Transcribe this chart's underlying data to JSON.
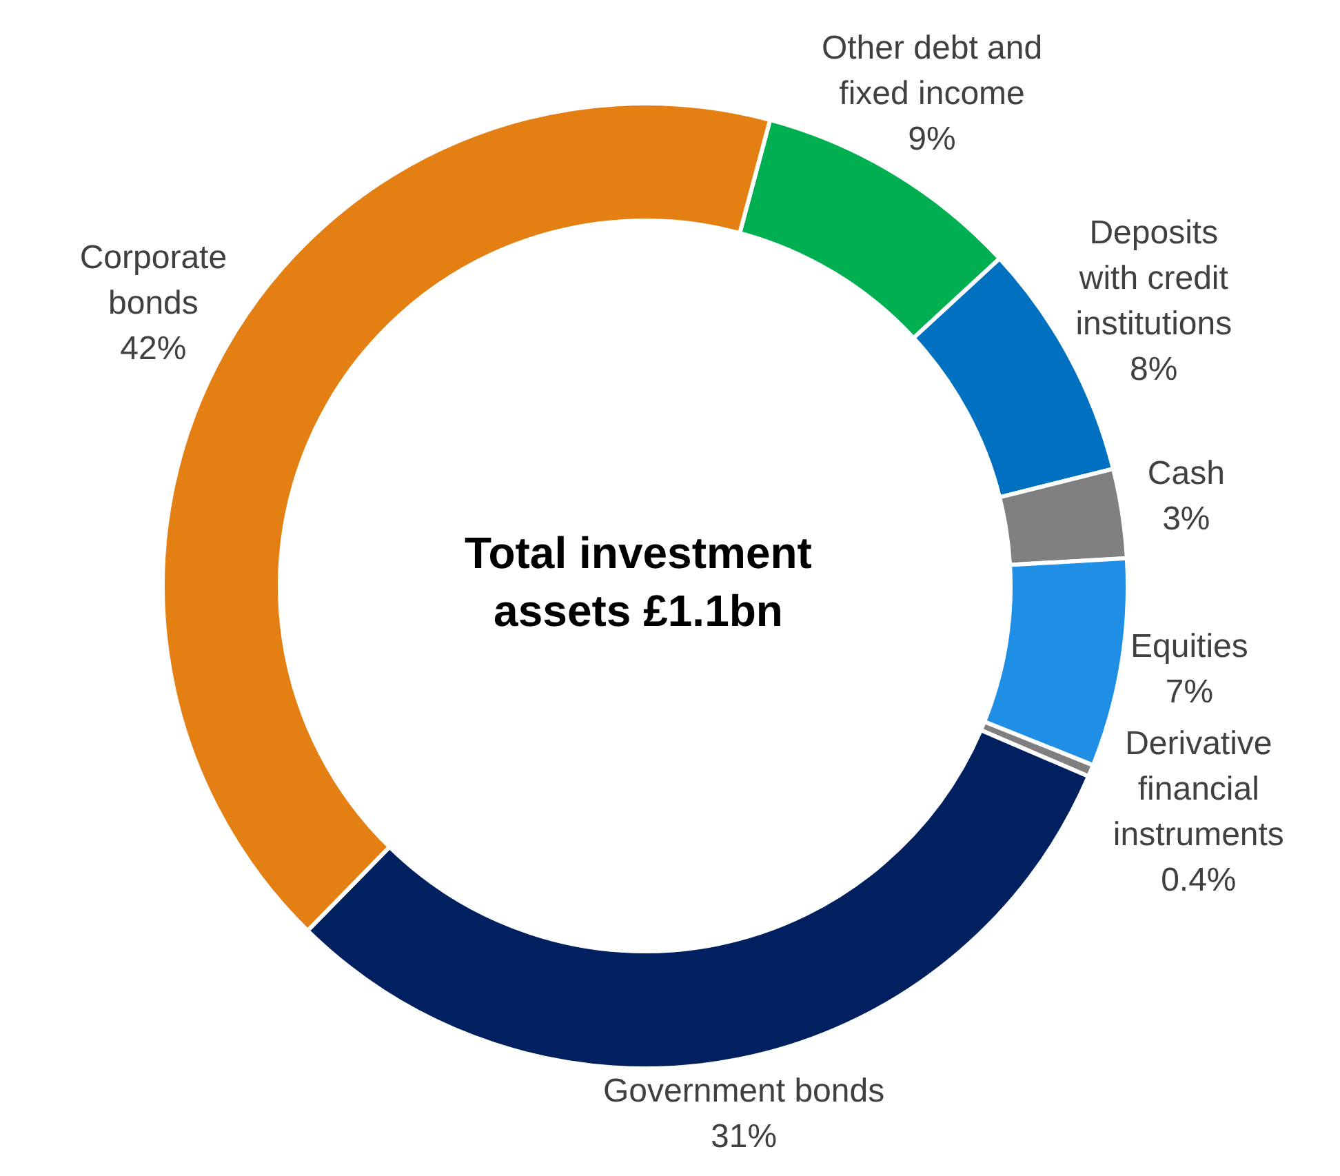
{
  "chart_data": {
    "type": "donut",
    "title": "Total investment assets £1.1bn",
    "categories": [
      "Other debt and fixed income",
      "Deposits with credit institutions",
      "Cash",
      "Equities",
      "Derivative financial instruments",
      "Government bonds",
      "Corporate bonds"
    ],
    "values": [
      9,
      8,
      3,
      7,
      0.4,
      31,
      42
    ],
    "value_labels": [
      "9%",
      "8%",
      "3%",
      "7%",
      "0.4%",
      "31%",
      "42%"
    ],
    "colors": [
      "#00b050",
      "#0070c0",
      "#808080",
      "#1f8fe6",
      "#7f7f7f",
      "#002060",
      "#e47f13"
    ],
    "legend": false
  }
}
